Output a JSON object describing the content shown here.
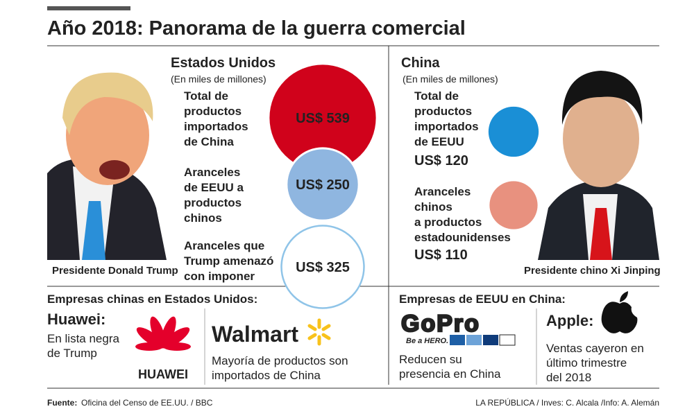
{
  "header": {
    "title": "Año 2018: Panorama de la guerra comercial"
  },
  "us": {
    "heading": "Estados Unidos",
    "unit": "(En miles de millones)",
    "items": [
      {
        "label": [
          "Total de",
          "productos",
          "importados",
          "de China"
        ],
        "value": 539,
        "value_label": "US$ 539",
        "color": "#d0021b",
        "label_color": "#c8102e"
      },
      {
        "label": [
          "Aranceles",
          "de EEUU a",
          "productos",
          "chinos"
        ],
        "value": 250,
        "value_label": "US$ 250",
        "color": "#8fb6e0",
        "label_color": "#1b8cc7"
      },
      {
        "label": [
          "Aranceles que",
          "Trump amenazó",
          "con imponer"
        ],
        "value": 325,
        "value_label": "US$ 325",
        "color": "#ffffff",
        "label_color": "#1b8cc7"
      }
    ],
    "photo_caption": "Presidente Donald Trump"
  },
  "china": {
    "heading": "China",
    "unit": "(En miles de millones)",
    "items": [
      {
        "label": [
          "Total de",
          "productos",
          "importados",
          "de EEUU"
        ],
        "value": 120,
        "value_label": "US$ 120",
        "color": "#1a8fd6",
        "label_color": "#222222"
      },
      {
        "label": [
          "Aranceles",
          "chinos",
          "a productos",
          "estadounidenses"
        ],
        "value": 110,
        "value_label": "US$ 110",
        "color": "#e8917f",
        "label_color": "#c8102e"
      }
    ],
    "photo_caption": "Presidente chino Xi Jinping"
  },
  "companies_us": {
    "heading": "Empresas chinas en Estados Unidos:",
    "cards": [
      {
        "name": "Huawei:",
        "logo": "HUAWEI",
        "text": [
          "En lista negra",
          "de Trump"
        ]
      },
      {
        "logo": "Walmart",
        "text": [
          "Mayoría de productos son",
          "importados de China"
        ]
      }
    ]
  },
  "companies_china": {
    "heading": "Empresas de EEUU en China:",
    "cards": [
      {
        "logo": "GoPro",
        "tagline": "Be a HERO.",
        "text": [
          "Reducen su",
          "presencia en China"
        ]
      },
      {
        "name": "Apple:",
        "text": [
          "Ventas cayeron en",
          "último trimestre",
          "del 2018"
        ]
      }
    ]
  },
  "footer": {
    "source_label": "Fuente:",
    "source": "Oficina del Censo de EE.UU. / BBC",
    "credits": "LA REPÚBLICA / Inves: C. Alcala /Info: A. Alemán"
  }
}
